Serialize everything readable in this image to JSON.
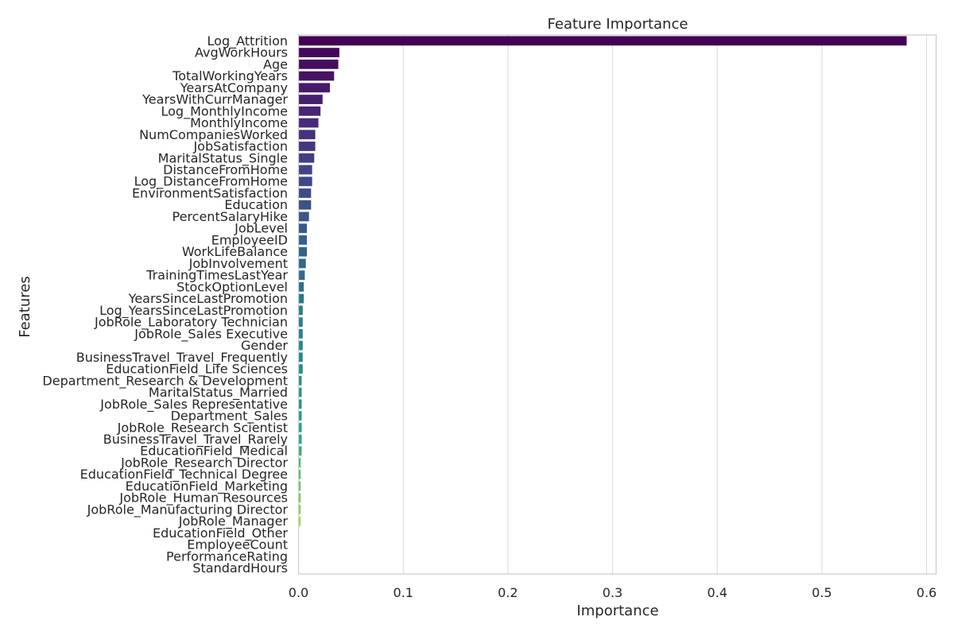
{
  "chart_data": {
    "type": "bar",
    "orientation": "horizontal",
    "title": "Feature Importance",
    "xlabel": "Importance",
    "ylabel": "Features",
    "xlim": [
      0,
      0.61
    ],
    "xticks": [
      "0.0",
      "0.1",
      "0.2",
      "0.3",
      "0.4",
      "0.5",
      "0.6"
    ],
    "grid": "vertical",
    "colormap": "viridis",
    "categories": [
      "Log_Attrition",
      "AvgWorkHours",
      "Age",
      "TotalWorkingYears",
      "YearsAtCompany",
      "YearsWithCurrManager",
      "Log_MonthlyIncome",
      "MonthlyIncome",
      "NumCompaniesWorked",
      "JobSatisfaction",
      "MaritalStatus_Single",
      "DistanceFromHome",
      "Log_DistanceFromHome",
      "EnvironmentSatisfaction",
      "Education",
      "PercentSalaryHike",
      "JobLevel",
      "EmployeeID",
      "WorkLifeBalance",
      "JobInvolvement",
      "TrainingTimesLastYear",
      "StockOptionLevel",
      "YearsSinceLastPromotion",
      "Log_YearsSinceLastPromotion",
      "JobRole_Laboratory Technician",
      "JobRole_Sales Executive",
      "Gender",
      "BusinessTravel_Travel_Frequently",
      "EducationField_Life Sciences",
      "Department_Research & Development",
      "MaritalStatus_Married",
      "JobRole_Sales Representative",
      "Department_Sales",
      "JobRole_Research Scientist",
      "BusinessTravel_Travel_Rarely",
      "EducationField_Medical",
      "JobRole_Research Director",
      "EducationField_Technical Degree",
      "EducationField_Marketing",
      "JobRole_Human Resources",
      "JobRole_Manufacturing Director",
      "JobRole_Manager",
      "EducationField_Other",
      "EmployeeCount",
      "PerformanceRating",
      "StandardHours"
    ],
    "values": [
      0.581,
      0.039,
      0.038,
      0.034,
      0.03,
      0.023,
      0.021,
      0.019,
      0.016,
      0.016,
      0.015,
      0.013,
      0.013,
      0.012,
      0.012,
      0.01,
      0.008,
      0.008,
      0.008,
      0.007,
      0.006,
      0.005,
      0.005,
      0.004,
      0.004,
      0.004,
      0.004,
      0.004,
      0.004,
      0.003,
      0.003,
      0.003,
      0.003,
      0.003,
      0.003,
      0.003,
      0.002,
      0.002,
      0.002,
      0.002,
      0.002,
      0.002,
      0.0,
      0.0,
      0.0,
      0.0
    ]
  }
}
